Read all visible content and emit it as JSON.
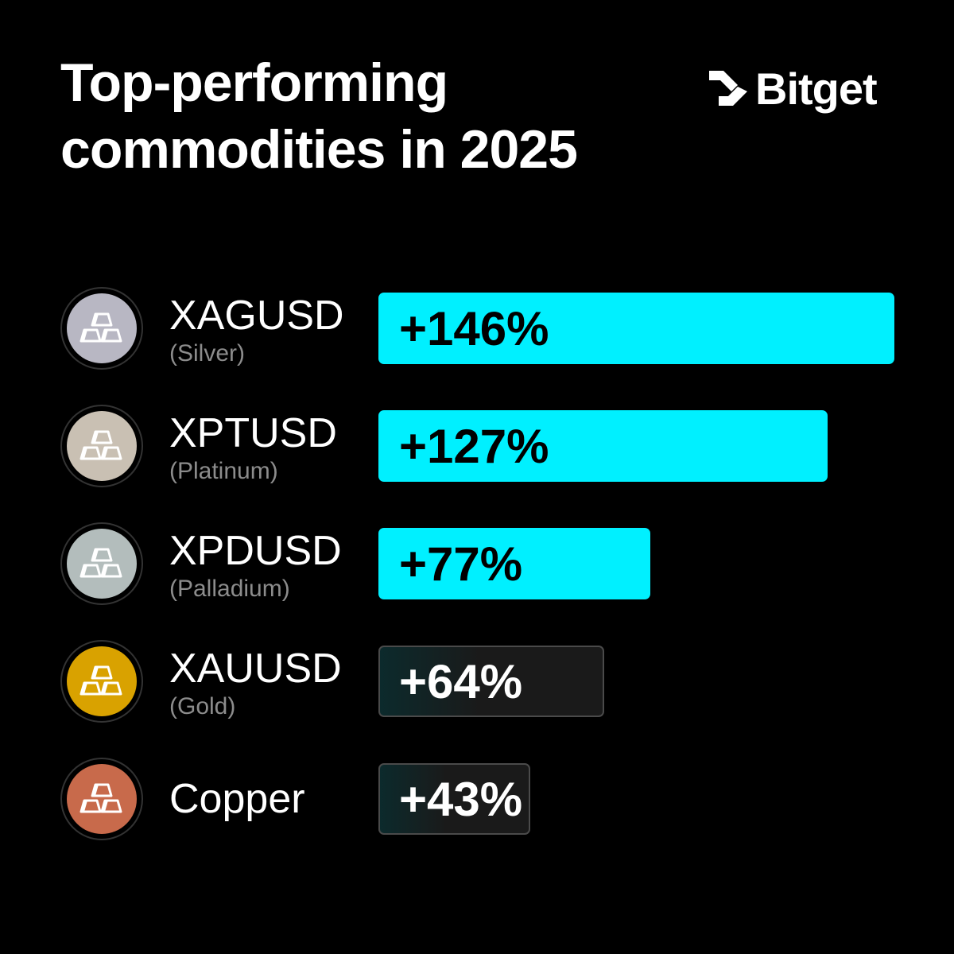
{
  "chart_data": {
    "type": "bar",
    "title": "Top-performing commodities in 2025",
    "brand": "Bitget",
    "categories": [
      "XAGUSD",
      "XPTUSD",
      "XPDUSD",
      "XAUUSD",
      "Copper"
    ],
    "subtitles": [
      "(Silver)",
      "(Platinum)",
      "(Palladium)",
      "(Gold)",
      null
    ],
    "values": [
      146,
      127,
      77,
      64,
      43
    ],
    "value_labels": [
      "+146%",
      "+127%",
      "+77%",
      "+64%",
      "+43%"
    ],
    "colors": [
      "#00f0ff",
      "#00f0ff",
      "#00f0ff",
      "#1a1a1a",
      "#1a1a1a"
    ],
    "highlight_color": "#00f0ff",
    "icon_colors": [
      "#b8b7c3",
      "#c9c0b3",
      "#b3bdbc",
      "#d9a200",
      "#c86a4b"
    ],
    "xlim": [
      0,
      146
    ]
  }
}
